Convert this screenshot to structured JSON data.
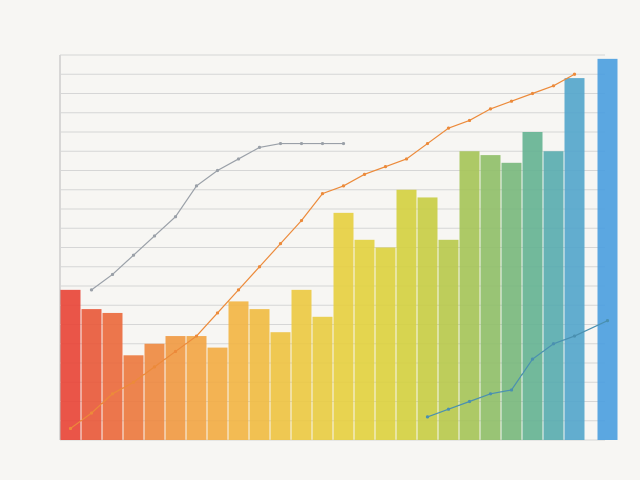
{
  "chart_data": {
    "type": "bar",
    "categories": [
      null,
      null,
      null,
      null,
      null,
      null,
      null,
      null,
      null,
      null,
      null,
      null,
      null,
      null,
      null,
      null,
      null,
      null,
      null,
      null,
      null,
      null,
      null,
      null,
      null,
      null
    ],
    "values": [
      39,
      34,
      33,
      22,
      25,
      27,
      27,
      24,
      36,
      34,
      28,
      39,
      32,
      59,
      52,
      50,
      65,
      63,
      52,
      75,
      74,
      72,
      80,
      75,
      94,
      99
    ],
    "colors": [
      "#e8473a",
      "#e85a3c",
      "#ea6a3e",
      "#ec7a40",
      "#ee8a42",
      "#f09a44",
      "#f2a646",
      "#f2ad45",
      "#f2b545",
      "#f0bc44",
      "#eec344",
      "#ecc944",
      "#e8cc44",
      "#e6cf42",
      "#e2d141",
      "#dcd141",
      "#d4d042",
      "#c8cd46",
      "#b8c94e",
      "#a6c45a",
      "#90bf6a",
      "#7ab97e",
      "#66b394",
      "#5aacb0",
      "#55a6cc",
      "#4d9fe0"
    ],
    "series": [
      {
        "color": "#ec8a3a",
        "values": [
          3,
          7,
          12,
          15,
          19,
          23,
          27,
          33,
          39,
          45,
          51,
          57,
          64,
          66,
          69,
          71,
          73,
          77,
          81,
          83,
          86,
          88,
          90,
          92,
          95,
          null
        ]
      },
      {
        "color": "#9aa0a8",
        "values": [
          null,
          39,
          43,
          48,
          53,
          58,
          66,
          70,
          73,
          76,
          77,
          77,
          77,
          77,
          null,
          null,
          null,
          null,
          null,
          null,
          null,
          null,
          null,
          null,
          null,
          null
        ]
      },
      {
        "color": "#4a90b0",
        "values": [
          null,
          null,
          null,
          null,
          null,
          null,
          null,
          null,
          null,
          null,
          null,
          null,
          null,
          null,
          null,
          null,
          null,
          6,
          8,
          10,
          12,
          13,
          21,
          25,
          27,
          31
        ]
      }
    ],
    "ylim": [
      0,
      100
    ],
    "yticks": [
      0,
      5,
      10,
      15,
      20,
      25,
      30,
      35,
      40,
      45,
      50,
      55,
      60,
      65,
      70,
      75,
      80,
      85,
      90,
      95,
      100
    ],
    "grid": true
  }
}
